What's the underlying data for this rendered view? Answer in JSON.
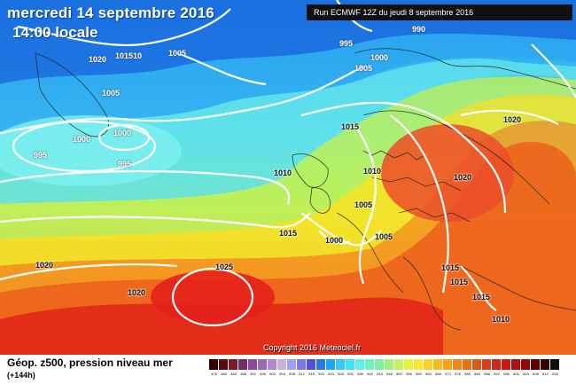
{
  "header": {
    "date": "mercredi 14 septembre 2016",
    "time": "14:00 locale",
    "run": "Run ECMWF 12Z du jeudi 8 septembre 2016"
  },
  "copyright": "Copyright 2016 Meteociel.fr",
  "isobar_labels": [
    "1020",
    "101510",
    "1005",
    "995",
    "990",
    "1000",
    "1005",
    "1005",
    "1000",
    "1000",
    "995",
    "995",
    "1015",
    "1010",
    "1010",
    "1005",
    "1015",
    "1000",
    "1005",
    "1020",
    "1020",
    "1020",
    "1025",
    "1020",
    "1015",
    "1015",
    "1015",
    "1010"
  ],
  "legend": {
    "title": "Géop. z500, pression niveau mer",
    "subtitle": "(+144h)",
    "scale_colors": [
      "#3a0000",
      "#5a0a0a",
      "#7a1a2a",
      "#7a2a6a",
      "#8a4aa0",
      "#9a6ab8",
      "#b08ad0",
      "#c8b0e0",
      "#a0a0f0",
      "#7878e8",
      "#5050d8",
      "#2878e8",
      "#28a0f0",
      "#30c8f8",
      "#40e0f8",
      "#60f0e8",
      "#70f0c0",
      "#80f0a0",
      "#a0f080",
      "#c8f060",
      "#e8f040",
      "#f8e830",
      "#f8d028",
      "#f8b820",
      "#f8a018",
      "#f08818",
      "#e87018",
      "#e05818",
      "#d84018",
      "#d02818",
      "#c81818",
      "#b01010",
      "#900808",
      "#600000",
      "#300000",
      "#101010"
    ],
    "scale_labels": [
      "476",
      "480",
      "484",
      "488",
      "492",
      "496",
      "500",
      "504",
      "508",
      "512",
      "516",
      "520",
      "524",
      "528",
      "532",
      "536",
      "540",
      "544",
      "548",
      "552",
      "556",
      "560",
      "564",
      "568",
      "572",
      "576",
      "580",
      "584",
      "588",
      "592",
      "596",
      "600",
      "604",
      "608",
      "612",
      "616"
    ]
  }
}
